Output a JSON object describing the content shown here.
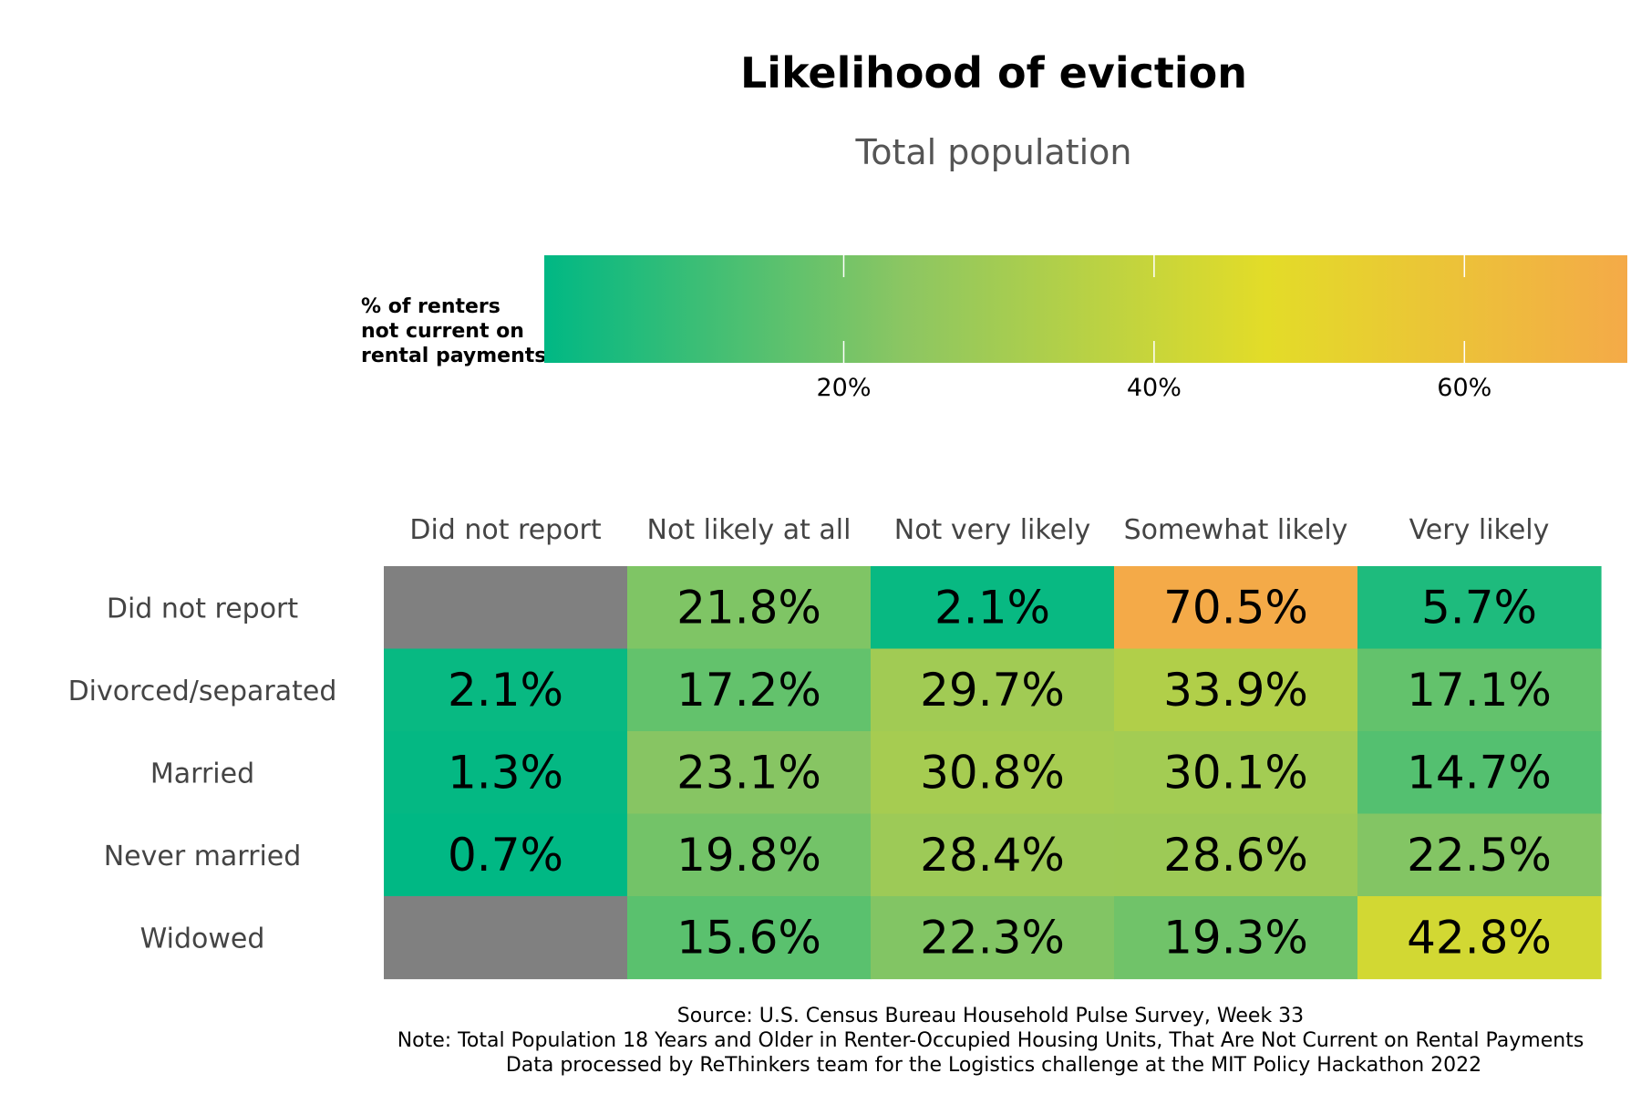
{
  "chart_data": {
    "type": "heatmap",
    "title": "Likelihood of eviction",
    "subtitle": "Total population",
    "legend": {
      "title_lines": [
        "% of renters",
        "not current on",
        "rental payments"
      ],
      "ticks": [
        20,
        40,
        60
      ],
      "tick_labels": [
        "20%",
        "40%",
        "60%"
      ],
      "range": [
        0.7,
        70.5
      ],
      "placement": "top",
      "gradient_colors": [
        "#00b884",
        "#8cc662",
        "#e3dc28",
        "#f4aa48"
      ]
    },
    "columns": [
      "Did not report",
      "Not likely at all",
      "Not very likely",
      "Somewhat likely",
      "Very likely"
    ],
    "rows": [
      "Did not report",
      "Divorced/separated",
      "Married",
      "Never married",
      "Widowed"
    ],
    "values": [
      [
        null,
        21.8,
        2.1,
        70.5,
        5.7
      ],
      [
        2.1,
        17.2,
        29.7,
        33.9,
        17.1
      ],
      [
        1.3,
        23.1,
        30.8,
        30.1,
        14.7
      ],
      [
        0.7,
        19.8,
        28.4,
        28.6,
        22.5
      ],
      [
        null,
        15.6,
        22.3,
        19.3,
        42.8
      ]
    ],
    "value_labels": [
      [
        "",
        "21.8%",
        "2.1%",
        "70.5%",
        "5.7%"
      ],
      [
        "2.1%",
        "17.2%",
        "29.7%",
        "33.9%",
        "17.1%"
      ],
      [
        "1.3%",
        "23.1%",
        "30.8%",
        "30.1%",
        "14.7%"
      ],
      [
        "0.7%",
        "19.8%",
        "28.4%",
        "28.6%",
        "22.5%"
      ],
      [
        "",
        "15.6%",
        "22.3%",
        "19.3%",
        "42.8%"
      ]
    ],
    "missing_color": "#808080",
    "caption_lines": [
      "Source: U.S. Census Bureau Household Pulse Survey, Week 33",
      "Note: Total Population 18 Years and Older in Renter-Occupied Housing Units, That Are Not Current on Rental Payments",
      "Data processed by ReThinkers team for the Logistics challenge at the MIT Policy Hackathon 2022"
    ]
  }
}
